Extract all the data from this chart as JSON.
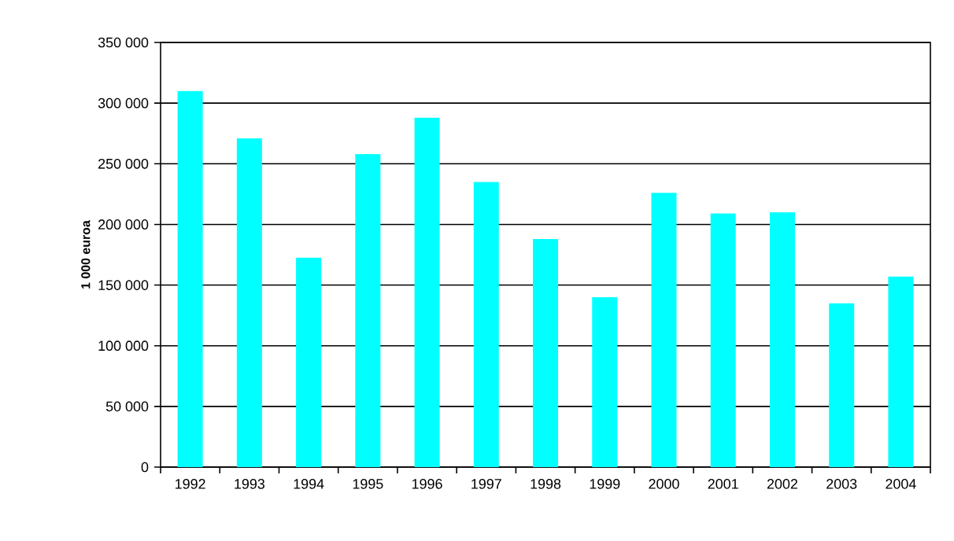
{
  "chart_data": {
    "type": "bar",
    "ylabel": "1 000 euroa",
    "categories": [
      "1992",
      "1993",
      "1994",
      "1995",
      "1996",
      "1997",
      "1998",
      "1999",
      "2000",
      "2001",
      "2002",
      "2003",
      "2004"
    ],
    "values": [
      310000,
      271000,
      172500,
      258000,
      288000,
      235000,
      188000,
      140000,
      226000,
      209000,
      210000,
      135000,
      157000
    ],
    "color": "#00ffff",
    "ylim": [
      0,
      350000
    ],
    "yticks": [
      0,
      {
        "value": 50000,
        "label": "50 000"
      },
      {
        "value": 100000,
        "label": "100 000"
      },
      {
        "value": 150000,
        "label": "150 000"
      },
      {
        "value": 200000,
        "label": "200 000"
      },
      {
        "value": 250000,
        "label": "250 000"
      },
      {
        "value": 300000,
        "label": "300 000"
      },
      {
        "value": 350000,
        "label": "350 000"
      }
    ],
    "grid": "y"
  }
}
